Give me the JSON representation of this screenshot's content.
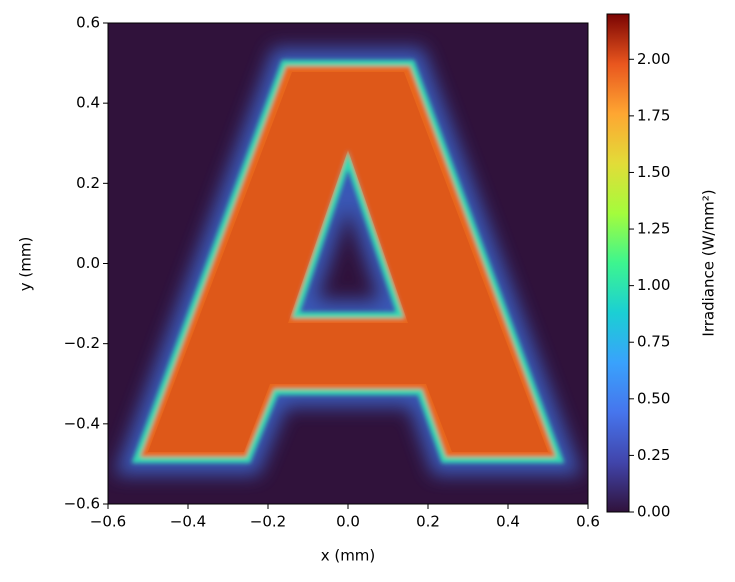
{
  "chart_data": {
    "type": "heatmap",
    "xlabel": "x (mm)",
    "ylabel": "y (mm)",
    "colorbar_label": "Irradiance (W/mm²)",
    "xlim": [
      -0.6,
      0.6
    ],
    "ylim": [
      -0.6,
      0.6
    ],
    "xticks": [
      {
        "value": -0.6,
        "label": "−0.6"
      },
      {
        "value": -0.4,
        "label": "−0.4"
      },
      {
        "value": -0.2,
        "label": "−0.2"
      },
      {
        "value": 0,
        "label": "0.0"
      },
      {
        "value": 0.2,
        "label": "0.2"
      },
      {
        "value": 0.4,
        "label": "0.4"
      },
      {
        "value": 0.6,
        "label": "0.6"
      }
    ],
    "yticks": [
      {
        "value": -0.6,
        "label": "−0.6"
      },
      {
        "value": -0.4,
        "label": "−0.4"
      },
      {
        "value": -0.2,
        "label": "−0.2"
      },
      {
        "value": 0,
        "label": "0.0"
      },
      {
        "value": 0.2,
        "label": "0.2"
      },
      {
        "value": 0.4,
        "label": "0.4"
      },
      {
        "value": 0.6,
        "label": "0.6"
      }
    ],
    "clim": [
      0,
      2.2
    ],
    "cticks": [
      {
        "value": 0,
        "label": "0.00"
      },
      {
        "value": 0.25,
        "label": "0.25"
      },
      {
        "value": 0.5,
        "label": "0.50"
      },
      {
        "value": 0.75,
        "label": "0.75"
      },
      {
        "value": 1,
        "label": "1.00"
      },
      {
        "value": 1.25,
        "label": "1.25"
      },
      {
        "value": 1.5,
        "label": "1.50"
      },
      {
        "value": 1.75,
        "label": "1.75"
      },
      {
        "value": 2,
        "label": "2.00"
      }
    ]
  }
}
